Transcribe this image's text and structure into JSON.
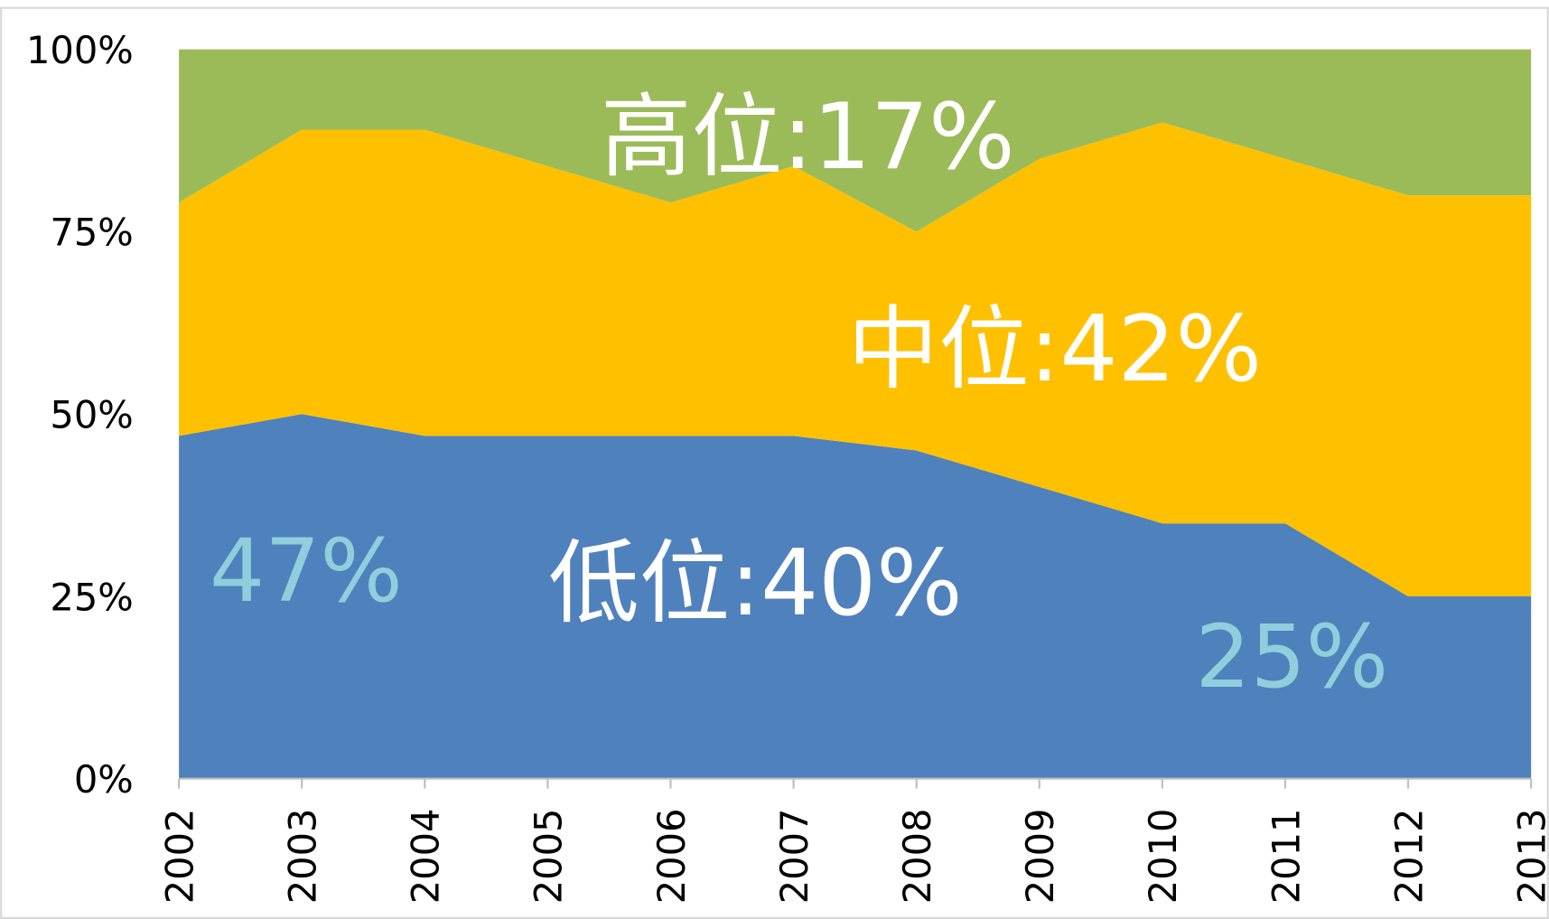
{
  "chart_data": {
    "type": "stacked-area",
    "categories": [
      "2002",
      "2003",
      "2004",
      "2005",
      "2006",
      "2007",
      "2008",
      "2009",
      "2010",
      "2011",
      "2012",
      "2013"
    ],
    "series": [
      {
        "color": "#4f81bd",
        "values": [
          47,
          50,
          47,
          47,
          47,
          47,
          45,
          40,
          35,
          35,
          25,
          25
        ]
      },
      {
        "color": "#ffc000",
        "values": [
          32,
          39,
          42,
          37,
          32,
          37,
          30,
          45,
          55,
          50,
          55,
          55
        ]
      },
      {
        "color": "#9bbb59",
        "values": [
          21,
          11,
          11,
          16,
          21,
          16,
          25,
          15,
          10,
          15,
          20,
          20
        ]
      }
    ],
    "ylim": [
      0,
      100
    ],
    "yticks": [
      {
        "value": 0,
        "label": "0%"
      },
      {
        "value": 25,
        "label": "25%"
      },
      {
        "value": 50,
        "label": "50%"
      },
      {
        "value": 75,
        "label": "75%"
      },
      {
        "value": 100,
        "label": "100%"
      }
    ],
    "annotations": [
      {
        "text": "高位:17%",
        "color": "#ffffff"
      },
      {
        "text": "中位:42%",
        "color": "#ffffff"
      },
      {
        "text": "低位:40%",
        "color": "#ffffff"
      },
      {
        "text": "47%",
        "color": "#92cddc"
      },
      {
        "text": "25%",
        "color": "#92cddc"
      }
    ]
  }
}
